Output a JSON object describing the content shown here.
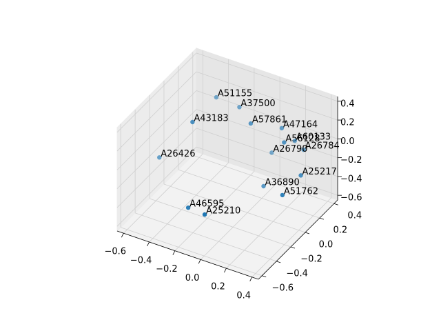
{
  "chart_data": {
    "type": "scatter3d",
    "color": "#1f77b4",
    "point_labels": [
      "A51155",
      "A37500",
      "A43183",
      "A57861",
      "A47164",
      "A56128",
      "A60133",
      "A26784",
      "A26790",
      "A26426",
      "A25217",
      "A36890",
      "A51762",
      "A46595",
      "A25210"
    ],
    "x": [
      -0.31,
      -0.13,
      -0.31,
      0.02,
      0.2,
      0.28,
      0.24,
      0.37,
      0.06,
      -0.63,
      0.41,
      0.12,
      0.39,
      -0.22,
      -0.03
    ],
    "y": [
      0.12,
      0.12,
      -0.21,
      0.01,
      0.12,
      0.01,
      0.23,
      0.12,
      0.23,
      -0.1,
      0.01,
      0.01,
      -0.21,
      -0.43,
      -0.54
    ],
    "z": [
      0.34,
      0.32,
      0.33,
      0.3,
      0.25,
      0.22,
      0.05,
      0.1,
      -0.16,
      -0.28,
      -0.07,
      -0.32,
      -0.12,
      -0.37,
      -0.27
    ],
    "xlim": [
      -0.65,
      0.45
    ],
    "ylim": [
      -0.65,
      0.45
    ],
    "zlim": [
      -0.65,
      0.45
    ],
    "xticks": [
      {
        "value": -0.6,
        "label": "−0.6"
      },
      {
        "value": -0.4,
        "label": "−0.4"
      },
      {
        "value": -0.2,
        "label": "−0.2"
      },
      {
        "value": 0,
        "label": "0.0"
      },
      0.2,
      0.4
    ],
    "yticks": [
      {
        "value": -0.6,
        "label": "−0.6"
      },
      {
        "value": -0.4,
        "label": "−0.4"
      },
      {
        "value": -0.2,
        "label": "−0.2"
      },
      {
        "value": 0,
        "label": "0.0"
      },
      0.2,
      0.4
    ],
    "zticks": [
      {
        "value": -0.6,
        "label": "−0.6"
      },
      {
        "value": -0.4,
        "label": "−0.4"
      },
      {
        "value": -0.2,
        "label": "−0.2"
      },
      {
        "value": 0,
        "label": "0.0"
      },
      0.2,
      0.4
    ],
    "grid": true
  }
}
